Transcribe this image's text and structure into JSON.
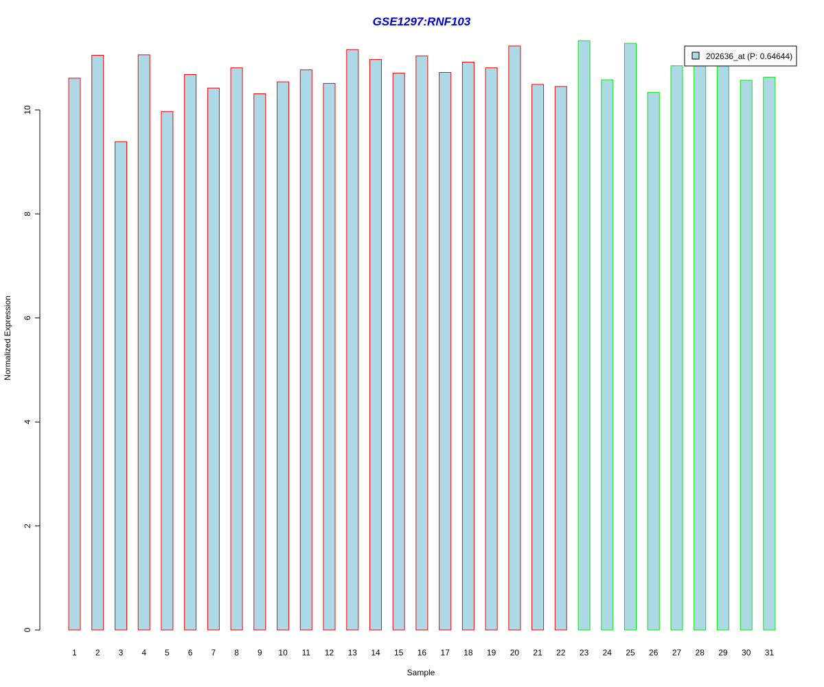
{
  "chart_data": {
    "type": "bar",
    "title": "GSE1297:RNF103",
    "xlabel": "Sample",
    "ylabel": "Normalized Expression",
    "ylim": [
      0,
      11.4
    ],
    "yticks": [
      0,
      2,
      4,
      6,
      8,
      10
    ],
    "grid": false,
    "legend": {
      "position": "top-right",
      "label": "202636_at (P: 0.64644)"
    },
    "categories": [
      "1",
      "2",
      "3",
      "4",
      "5",
      "6",
      "7",
      "8",
      "9",
      "10",
      "11",
      "12",
      "13",
      "14",
      "15",
      "16",
      "17",
      "18",
      "19",
      "20",
      "21",
      "22",
      "23",
      "24",
      "25",
      "26",
      "27",
      "28",
      "29",
      "30",
      "31"
    ],
    "values": [
      10.61,
      11.05,
      9.39,
      11.06,
      9.97,
      10.68,
      10.42,
      10.81,
      10.31,
      10.54,
      10.77,
      10.51,
      11.16,
      10.97,
      10.71,
      11.04,
      10.72,
      10.92,
      10.81,
      11.23,
      10.49,
      10.45,
      11.33,
      10.58,
      11.28,
      10.34,
      10.85,
      10.89,
      10.9,
      10.57,
      10.63
    ],
    "groups": [
      "a",
      "a",
      "a",
      "a",
      "a",
      "a",
      "a",
      "a",
      "a",
      "a",
      "a",
      "a",
      "a",
      "a",
      "a",
      "a",
      "a",
      "a",
      "a",
      "a",
      "a",
      "a",
      "b",
      "b",
      "b",
      "b",
      "b",
      "b",
      "b",
      "b",
      "b"
    ]
  },
  "colors": {
    "title": "#0000cc",
    "bar_fill": "#add8e6",
    "group_a_border": "#ff0000",
    "group_b_border": "#00ee00",
    "axis": "#000000"
  }
}
